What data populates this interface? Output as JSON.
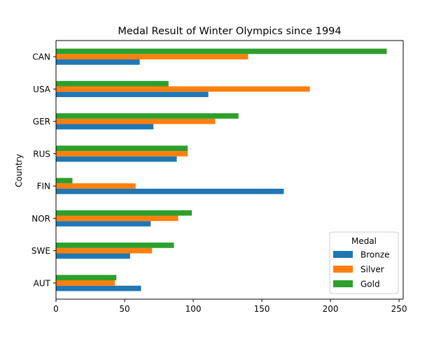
{
  "chart_data": {
    "type": "bar",
    "orientation": "horizontal",
    "title": "Medal Result of Winter Olympics since 1994",
    "xlabel": "",
    "ylabel": "Country",
    "categories": [
      "AUT",
      "SWE",
      "NOR",
      "FIN",
      "RUS",
      "GER",
      "USA",
      "CAN"
    ],
    "series": [
      {
        "name": "Bronze",
        "color": "#1f77b4",
        "values": [
          62,
          54,
          69,
          166,
          88,
          71,
          111,
          61
        ]
      },
      {
        "name": "Silver",
        "color": "#ff7f0e",
        "values": [
          43,
          70,
          89,
          58,
          96,
          116,
          185,
          140
        ]
      },
      {
        "name": "Gold",
        "color": "#2ca02c",
        "values": [
          44,
          86,
          99,
          12,
          96,
          133,
          82,
          241
        ]
      }
    ],
    "xlim": [
      0,
      253
    ],
    "xticks": [
      0,
      50,
      100,
      150,
      200,
      250
    ],
    "grid": false,
    "legend": {
      "title": "Medal",
      "placement": "lower-right"
    }
  }
}
